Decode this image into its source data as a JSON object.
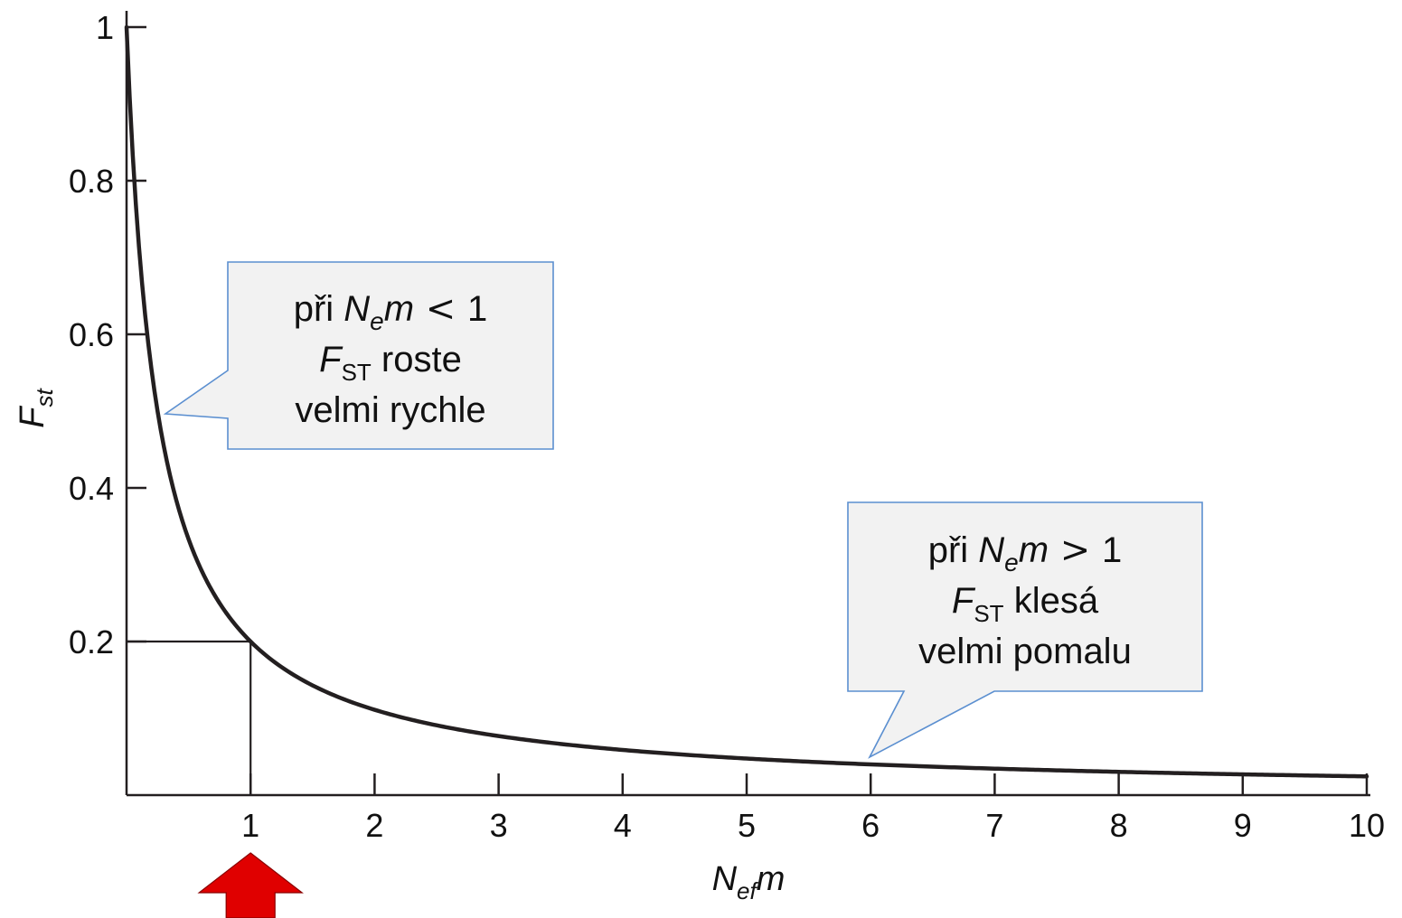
{
  "chart_data": {
    "type": "line",
    "xlabel": {
      "main": "N",
      "sub": "ef",
      "suffix": "m"
    },
    "ylabel": {
      "main": "F",
      "sub": "st"
    },
    "xlim": [
      0,
      10
    ],
    "ylim": [
      0,
      1
    ],
    "x_ticks": [
      1,
      2,
      3,
      4,
      5,
      6,
      7,
      8,
      9,
      10
    ],
    "x_tick_labels": [
      "1",
      "2",
      "3",
      "4",
      "5",
      "6",
      "7",
      "8",
      "9",
      "10"
    ],
    "y_ticks": [
      0.2,
      0.4,
      0.6,
      0.8,
      1
    ],
    "y_tick_labels": [
      "0.2",
      "0.4",
      "0.6",
      "0.8",
      "1"
    ],
    "grid": false,
    "legend": "none",
    "series": [
      {
        "formula": "F_ST = 1 / (4 N_e m + 1)",
        "x": [
          0,
          0.1,
          0.25,
          0.5,
          0.75,
          1,
          1.5,
          2,
          3,
          4,
          5,
          6,
          7,
          8,
          9,
          10
        ],
        "y": [
          1,
          0.714,
          0.5,
          0.333,
          0.25,
          0.2,
          0.143,
          0.111,
          0.077,
          0.059,
          0.048,
          0.04,
          0.034,
          0.03,
          0.027,
          0.024
        ],
        "color": "#231f20"
      }
    ],
    "reference_point": {
      "x": 1,
      "y": 0.2
    },
    "callouts": [
      {
        "line1_prefix": "při ",
        "line1_var": "N",
        "line1_sub": "e",
        "line1_var2": "m",
        "line1_op": "<",
        "line1_num": "1",
        "line2_var": "F",
        "line2_sub": "ST",
        "line2_rest": " roste",
        "line3": "velmi rychle"
      },
      {
        "line1_prefix": "při ",
        "line1_var": "N",
        "line1_sub": "e",
        "line1_var2": "m",
        "line1_op": ">",
        "line1_num": "1",
        "line2_var": "F",
        "line2_sub": "ST",
        "line2_rest": " klesá",
        "line3": "velmi pomalu"
      }
    ],
    "marker_arrow": {
      "x": 1,
      "color": "#e00000"
    }
  }
}
